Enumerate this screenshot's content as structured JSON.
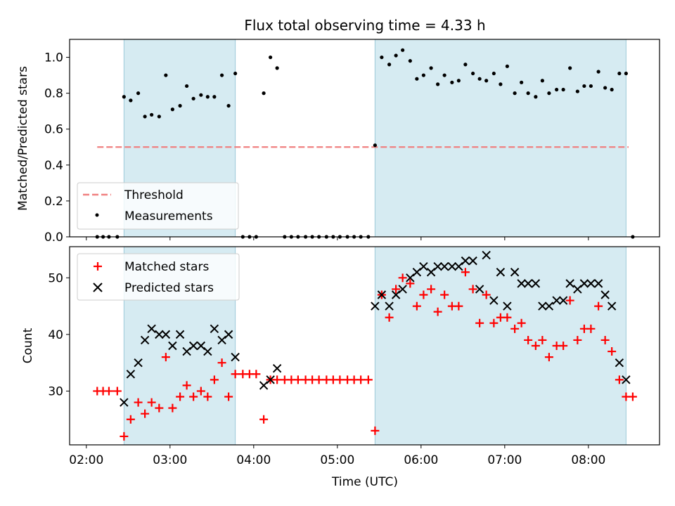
{
  "chart_data": [
    {
      "type": "scatter",
      "title": "Flux total observing time = 4.33 h",
      "xlabel": "",
      "ylabel": "Matched/Predicted stars",
      "xlim_hours": [
        1.8,
        8.85
      ],
      "ylim": [
        0,
        1.1
      ],
      "yticks": [
        0.0,
        0.2,
        0.4,
        0.6,
        0.8,
        1.0
      ],
      "ytick_labels": [
        "0.0",
        "0.2",
        "0.4",
        "0.6",
        "0.8",
        "1.0"
      ],
      "shaded_intervals_hours": [
        [
          2.45,
          3.78
        ],
        [
          5.45,
          8.45
        ]
      ],
      "threshold": {
        "label": "Threshold",
        "value": 0.5,
        "x_range_hours": [
          2.13,
          8.48
        ],
        "color": "#f08080"
      },
      "series": [
        {
          "name": "Measurements",
          "marker": "dot",
          "color": "#000000",
          "x": [
            2.13,
            2.2,
            2.27,
            2.37,
            2.45,
            2.53,
            2.62,
            2.7,
            2.78,
            2.87,
            2.95,
            3.03,
            3.12,
            3.2,
            3.28,
            3.37,
            3.45,
            3.53,
            3.62,
            3.7,
            3.78,
            3.87,
            3.95,
            4.03,
            4.12,
            4.2,
            4.28,
            4.37,
            4.45,
            4.53,
            4.62,
            4.7,
            4.78,
            4.87,
            4.95,
            5.03,
            5.12,
            5.2,
            5.28,
            5.37,
            5.45,
            5.53,
            5.62,
            5.7,
            5.78,
            5.87,
            5.95,
            6.03,
            6.12,
            6.2,
            6.28,
            6.37,
            6.45,
            6.53,
            6.62,
            6.7,
            6.78,
            6.87,
            6.95,
            7.03,
            7.12,
            7.2,
            7.28,
            7.37,
            7.45,
            7.53,
            7.62,
            7.7,
            7.78,
            7.87,
            7.95,
            8.03,
            8.12,
            8.2,
            8.28,
            8.37,
            8.45,
            8.53
          ],
          "y": [
            0,
            0,
            0,
            0,
            0.78,
            0.76,
            0.8,
            0.67,
            0.68,
            0.67,
            0.9,
            0.71,
            0.73,
            0.84,
            0.77,
            0.79,
            0.78,
            0.78,
            0.9,
            0.73,
            0.91,
            0,
            0,
            0,
            0.8,
            1.0,
            0.94,
            0,
            0,
            0,
            0,
            0,
            0,
            0,
            0,
            0,
            0,
            0,
            0,
            0,
            0.51,
            1.0,
            0.96,
            1.01,
            1.04,
            0.98,
            0.88,
            0.9,
            0.94,
            0.85,
            0.9,
            0.86,
            0.87,
            0.96,
            0.91,
            0.88,
            0.87,
            0.91,
            0.85,
            0.95,
            0.8,
            0.86,
            0.8,
            0.78,
            0.87,
            0.8,
            0.82,
            0.82,
            0.94,
            0.81,
            0.84,
            0.84,
            0.92,
            0.83,
            0.82,
            0.91,
            0.91,
            0
          ]
        }
      ],
      "legend": {
        "location": "lower-left",
        "entries": [
          "Threshold",
          "Measurements"
        ]
      }
    },
    {
      "type": "scatter",
      "title": "",
      "xlabel": "Time (UTC)",
      "ylabel": "Count",
      "xlim_hours": [
        1.8,
        8.85
      ],
      "ylim": [
        20.5,
        55.5
      ],
      "yticks": [
        30,
        40,
        50
      ],
      "ytick_labels": [
        "30",
        "40",
        "50"
      ],
      "xticks_hours": [
        2,
        3,
        4,
        5,
        6,
        7,
        8
      ],
      "xtick_labels": [
        "02:00",
        "03:00",
        "04:00",
        "05:00",
        "06:00",
        "07:00",
        "08:00"
      ],
      "shaded_intervals_hours": [
        [
          2.45,
          3.78
        ],
        [
          5.45,
          8.45
        ]
      ],
      "series": [
        {
          "name": "Matched stars",
          "marker": "plus",
          "color": "#ff0000",
          "x": [
            2.13,
            2.2,
            2.27,
            2.37,
            2.45,
            2.53,
            2.62,
            2.7,
            2.78,
            2.87,
            2.95,
            3.03,
            3.12,
            3.2,
            3.28,
            3.37,
            3.45,
            3.53,
            3.62,
            3.7,
            3.78,
            3.87,
            3.95,
            4.03,
            4.12,
            4.2,
            4.28,
            4.37,
            4.45,
            4.53,
            4.62,
            4.7,
            4.78,
            4.87,
            4.95,
            5.03,
            5.12,
            5.2,
            5.28,
            5.37,
            5.45,
            5.53,
            5.62,
            5.7,
            5.78,
            5.87,
            5.95,
            6.03,
            6.12,
            6.2,
            6.28,
            6.37,
            6.45,
            6.53,
            6.62,
            6.7,
            6.78,
            6.87,
            6.95,
            7.03,
            7.12,
            7.2,
            7.28,
            7.37,
            7.45,
            7.53,
            7.62,
            7.7,
            7.78,
            7.87,
            7.95,
            8.03,
            8.12,
            8.2,
            8.28,
            8.37,
            8.45,
            8.53
          ],
          "y": [
            30,
            30,
            30,
            30,
            22,
            25,
            28,
            26,
            28,
            27,
            36,
            27,
            29,
            31,
            29,
            30,
            29,
            32,
            35,
            29,
            33,
            33,
            33,
            33,
            25,
            32,
            32,
            32,
            32,
            32,
            32,
            32,
            32,
            32,
            32,
            32,
            32,
            32,
            32,
            32,
            23,
            47,
            43,
            48,
            50,
            49,
            45,
            47,
            48,
            44,
            47,
            45,
            45,
            51,
            48,
            42,
            47,
            42,
            43,
            43,
            41,
            42,
            39,
            38,
            39,
            36,
            38,
            38,
            46,
            39,
            41,
            41,
            45,
            39,
            37,
            32,
            29,
            29
          ]
        },
        {
          "name": "Predicted stars",
          "marker": "x",
          "color": "#000000",
          "x": [
            2.45,
            2.53,
            2.62,
            2.7,
            2.78,
            2.87,
            2.95,
            3.03,
            3.12,
            3.2,
            3.28,
            3.37,
            3.45,
            3.53,
            3.62,
            3.7,
            3.78,
            4.12,
            4.2,
            4.28,
            5.45,
            5.53,
            5.62,
            5.7,
            5.78,
            5.87,
            5.95,
            6.03,
            6.12,
            6.2,
            6.28,
            6.37,
            6.45,
            6.53,
            6.62,
            6.7,
            6.78,
            6.87,
            6.95,
            7.03,
            7.12,
            7.2,
            7.28,
            7.37,
            7.45,
            7.53,
            7.62,
            7.7,
            7.78,
            7.87,
            7.95,
            8.03,
            8.12,
            8.2,
            8.28,
            8.37,
            8.45
          ],
          "y": [
            28,
            33,
            35,
            39,
            41,
            40,
            40,
            38,
            40,
            37,
            38,
            38,
            37,
            41,
            39,
            40,
            36,
            31,
            32,
            34,
            45,
            47,
            45,
            47,
            48,
            50,
            51,
            52,
            51,
            52,
            52,
            52,
            52,
            53,
            53,
            48,
            54,
            46,
            51,
            45,
            51,
            49,
            49,
            49,
            45,
            45,
            46,
            46,
            49,
            48,
            49,
            49,
            49,
            47,
            45,
            35,
            32
          ]
        }
      ],
      "legend": {
        "location": "upper-left",
        "entries": [
          "Matched stars",
          "Predicted stars"
        ]
      }
    }
  ]
}
